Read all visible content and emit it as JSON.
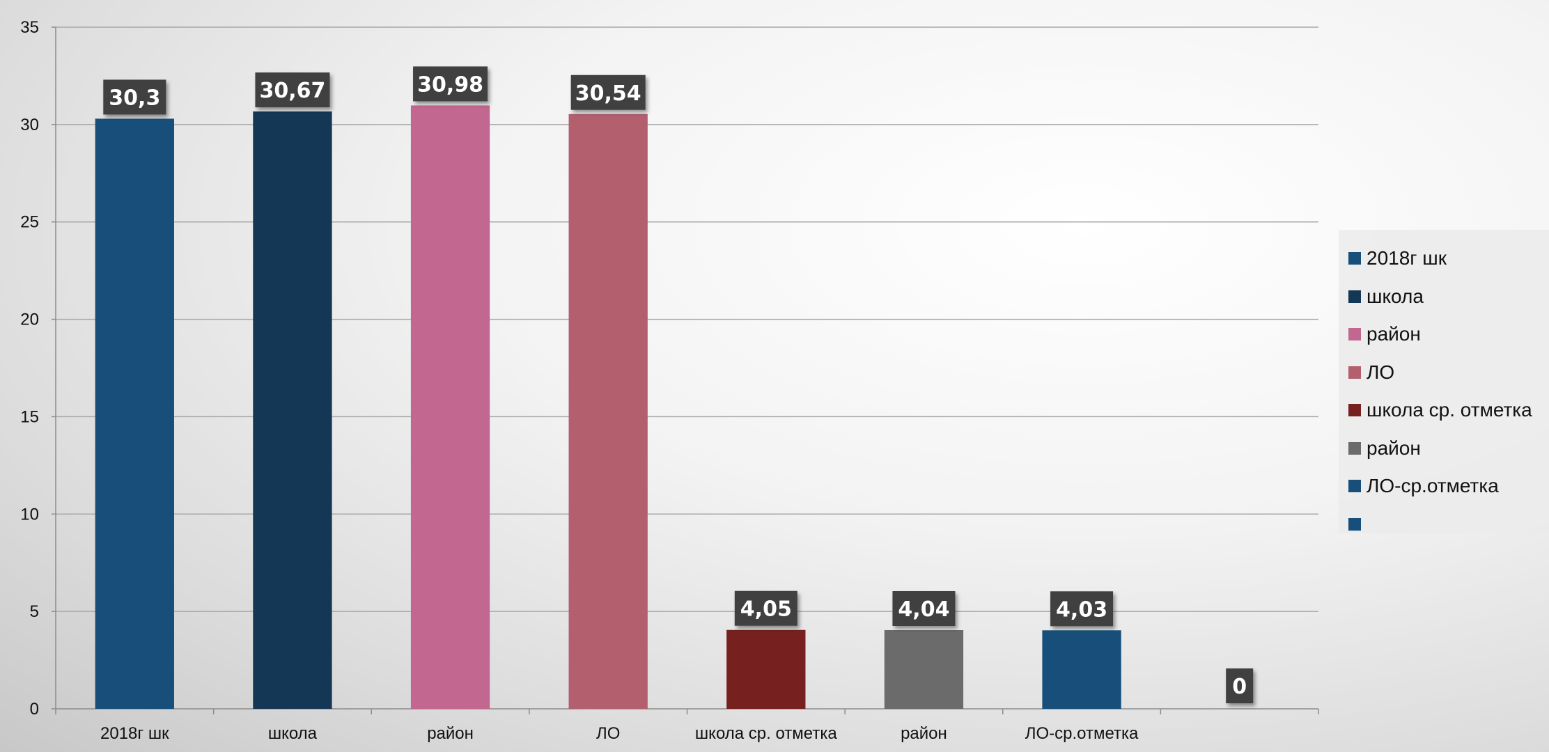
{
  "chart_data": {
    "type": "bar",
    "categories": [
      "2018г шк",
      "школа",
      "район",
      "ЛО",
      "школа ср. отметка",
      "район",
      "ЛО-ср.отметка",
      ""
    ],
    "values": [
      30.3,
      30.67,
      30.98,
      30.54,
      4.05,
      4.04,
      4.03,
      0
    ],
    "data_labels": [
      "30,3",
      "30,67",
      "30,98",
      "30,54",
      "4,05",
      "4,04",
      "4,03",
      "0"
    ],
    "colors": [
      "#174F7A",
      "#143755",
      "#C2678F",
      "#B35F6E",
      "#772020",
      "#6B6B6B",
      "#174F7A",
      "#174F7A"
    ],
    "ylim": [
      0,
      35
    ],
    "yticks": [
      "0",
      "5",
      "10",
      "15",
      "20",
      "25",
      "30",
      "35"
    ],
    "grid": true,
    "legend_position": "right",
    "legend": [
      {
        "label": "2018г шк",
        "color": "#174F7A"
      },
      {
        "label": "школа",
        "color": "#143755"
      },
      {
        "label": "район",
        "color": "#C2678F"
      },
      {
        "label": "ЛО",
        "color": "#B35F6E"
      },
      {
        "label": "школа ср. отметка",
        "color": "#772020"
      },
      {
        "label": "район",
        "color": "#6B6B6B"
      },
      {
        "label": "ЛО-ср.отметка",
        "color": "#174F7A"
      },
      {
        "label": "",
        "color": "#174F7A"
      }
    ],
    "title": "",
    "xlabel": "",
    "ylabel": ""
  }
}
